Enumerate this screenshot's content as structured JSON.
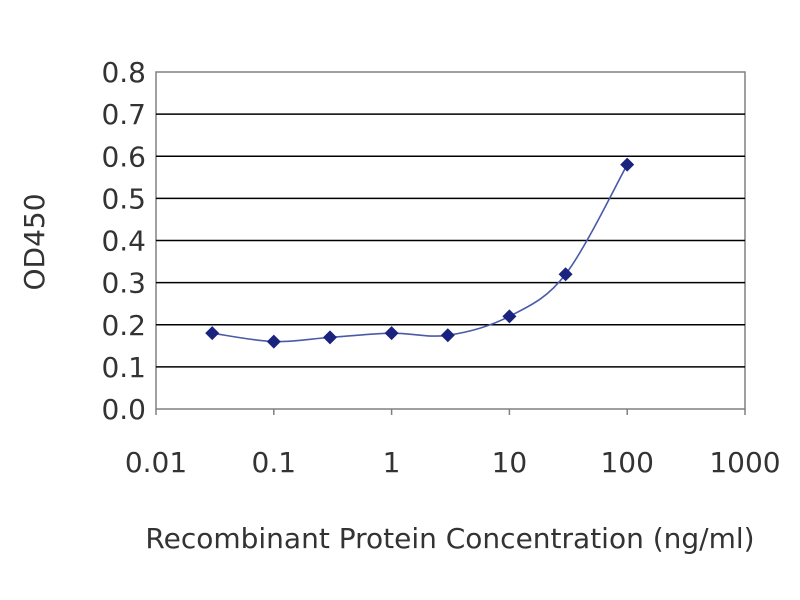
{
  "chart_data": {
    "type": "line",
    "xscale": "log",
    "x": [
      0.03,
      0.1,
      0.3,
      1,
      3,
      10,
      30,
      100
    ],
    "series": [
      {
        "values": [
          0.18,
          0.16,
          0.17,
          0.18,
          0.175,
          0.22,
          0.32,
          0.58
        ]
      }
    ],
    "xlabel": "Recombinant Protein Concentration (ng/ml)",
    "ylabel": "OD450",
    "xlim": [
      0.01,
      1000
    ],
    "ylim": [
      0,
      0.8
    ],
    "xticks": [
      "0.01",
      "0.1",
      "1",
      "10",
      "100",
      "1000"
    ],
    "yticks": [
      "0.0",
      "0.1",
      "0.2",
      "0.3",
      "0.4",
      "0.5",
      "0.6",
      "0.7",
      "0.8"
    ],
    "grid": "horizontal",
    "colors": {
      "line": "#4a5aa8",
      "marker": "#1a237e",
      "grid": "#000000",
      "axis": "#808080"
    }
  }
}
